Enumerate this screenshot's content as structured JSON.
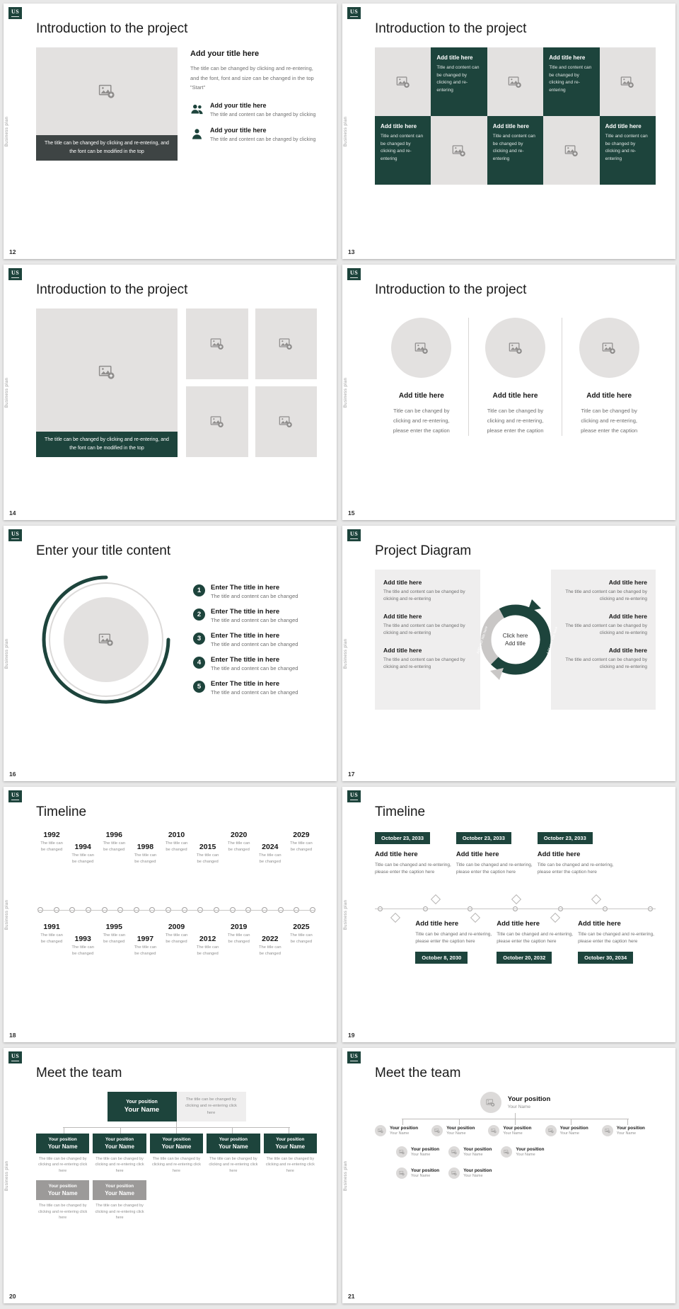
{
  "chrome": {
    "logo": "US",
    "vertical_text": "Business plan"
  },
  "colors": {
    "accent": "#1d443c",
    "placeholder": "#e3e1e0",
    "caption_dark": "#3e4444"
  },
  "slides": {
    "s12": {
      "number": "12",
      "title": "Introduction to the project",
      "image_caption": "The title can be changed by clicking and re-entering, and the font can be modified in the top",
      "lead_title": "Add your title here",
      "lead_body": "The title can be changed by clicking and re-entering, and the font, font and size can be changed in the top \"Start\"",
      "items": [
        {
          "title": "Add your title here",
          "body": "The title and content can be changed by clicking"
        },
        {
          "title": "Add your title here",
          "body": "The title and content can be changed by clicking"
        }
      ]
    },
    "s13": {
      "number": "13",
      "title": "Introduction to the project",
      "cell_title": "Add title here",
      "cell_body": "Title and content can be changed by clicking and re-entering"
    },
    "s14": {
      "number": "14",
      "title": "Introduction to the project",
      "image_caption": "The title can be changed by clicking and re-entering, and the font can be modified in the top"
    },
    "s15": {
      "number": "15",
      "title": "Introduction to the project",
      "item_title": "Add title here",
      "item_body": "Title can be changed by clicking and re-entering, please enter the caption"
    },
    "s16": {
      "number": "16",
      "title": "Enter your title content",
      "items": [
        {
          "num": "1",
          "title": "Enter The title in here",
          "body": "The title and content can be changed"
        },
        {
          "num": "2",
          "title": "Enter The title in here",
          "body": "The title and content can be changed"
        },
        {
          "num": "3",
          "title": "Enter The title in here",
          "body": "The title and content can be changed"
        },
        {
          "num": "4",
          "title": "Enter The title in here",
          "body": "The title and content can be changed"
        },
        {
          "num": "5",
          "title": "Enter The title in here",
          "body": "The title and content can be changed"
        }
      ]
    },
    "s17": {
      "number": "17",
      "title": "Project Diagram",
      "center_line1": "Click here",
      "center_line2": "Add title",
      "arrow_label": "Add your title here",
      "item_title": "Add title here",
      "item_body": "The title and content can be changed by clicking and re-entering"
    },
    "s18": {
      "number": "18",
      "title": "Timeline",
      "caption": "The title can be changed",
      "top": [
        {
          "year": "1992"
        },
        {
          "year": "1994"
        },
        {
          "year": "1996"
        },
        {
          "year": "1998"
        },
        {
          "year": "2010"
        },
        {
          "year": "2015"
        },
        {
          "year": "2020"
        },
        {
          "year": "2024"
        },
        {
          "year": "2029"
        }
      ],
      "bottom": [
        {
          "year": "1991"
        },
        {
          "year": "1993"
        },
        {
          "year": "1995"
        },
        {
          "year": "1997"
        },
        {
          "year": "2009"
        },
        {
          "year": "2012"
        },
        {
          "year": "2019"
        },
        {
          "year": "2022"
        },
        {
          "year": "2025"
        }
      ]
    },
    "s19": {
      "number": "19",
      "title": "Timeline",
      "top": [
        {
          "date": "October 23, 2033",
          "title": "Add title here",
          "body": "Title can be changed and re-entering, please enter the caption here"
        },
        {
          "date": "October 23, 2033",
          "title": "Add title here",
          "body": "Title can be changed and re-entering, please enter the caption here"
        },
        {
          "date": "October 23, 2033",
          "title": "Add title here",
          "body": "Title can be changed and re-entering, please enter the caption here"
        }
      ],
      "bottom": [
        {
          "date": "October 8, 2030",
          "title": "Add title here",
          "body": "Title can be changed and re-entering, please enter the caption here"
        },
        {
          "date": "October 20, 2032",
          "title": "Add title here",
          "body": "Title can be changed and re-entering, please enter the caption here"
        },
        {
          "date": "October 30, 2034",
          "title": "Add title here",
          "body": "Title can be changed and re-entering, please enter the caption here"
        }
      ]
    },
    "s20": {
      "number": "20",
      "title": "Meet the team",
      "position": "Your position",
      "name": "Your Name",
      "note": "The title can be changed by clicking and re-entering click here"
    },
    "s21": {
      "number": "21",
      "title": "Meet the team",
      "position": "Your position",
      "name": "Your Name"
    }
  }
}
